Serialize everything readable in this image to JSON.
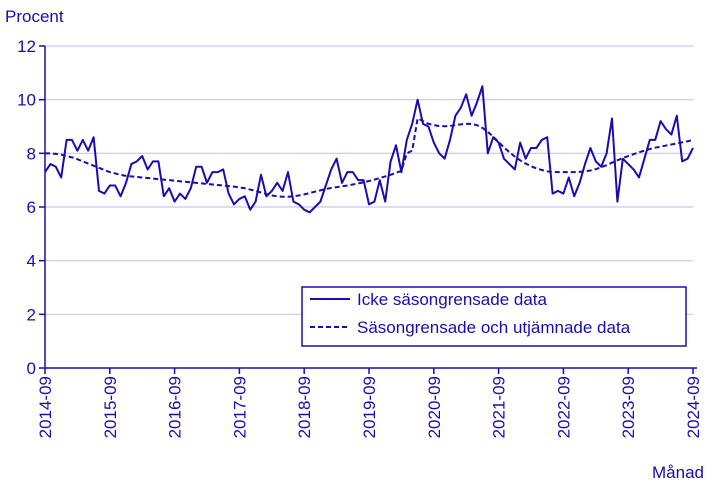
{
  "chart_data": {
    "type": "line",
    "title": "",
    "ylabel": "Procent",
    "xlabel": "Månad",
    "ylim": [
      0,
      12
    ],
    "yticks": [
      0,
      2,
      4,
      6,
      8,
      10,
      12
    ],
    "x_range": [
      "2014-09",
      "2024-09"
    ],
    "xticks": [
      "2014-09",
      "2015-09",
      "2016-09",
      "2017-09",
      "2018-09",
      "2019-09",
      "2020-09",
      "2021-09",
      "2022-09",
      "2023-09",
      "2024-09"
    ],
    "grid": "horizontal",
    "legend": {
      "placement": "bottom-right",
      "boxed": true
    },
    "colors": {
      "series": "#1a0dab",
      "grid": "#c8c8f0",
      "axis": "#1a0dab",
      "text": "#1a0dab"
    },
    "series": [
      {
        "name": "Icke säsongrensade data",
        "style": "solid",
        "values": [
          7.3,
          7.6,
          7.5,
          7.1,
          8.5,
          8.5,
          8.1,
          8.5,
          8.1,
          8.6,
          6.6,
          6.5,
          6.8,
          6.8,
          6.4,
          6.9,
          7.6,
          7.7,
          7.9,
          7.4,
          7.7,
          7.7,
          6.4,
          6.7,
          6.2,
          6.5,
          6.3,
          6.7,
          7.5,
          7.5,
          6.9,
          7.3,
          7.3,
          7.4,
          6.5,
          6.1,
          6.3,
          6.4,
          5.9,
          6.2,
          7.2,
          6.4,
          6.6,
          6.9,
          6.6,
          7.3,
          6.2,
          6.1,
          5.9,
          5.8,
          6.0,
          6.2,
          6.8,
          7.4,
          7.8,
          6.9,
          7.3,
          7.3,
          7.0,
          7.0,
          6.1,
          6.2,
          7.0,
          6.2,
          7.7,
          8.3,
          7.3,
          8.5,
          9.1,
          10.0,
          9.1,
          9.0,
          8.4,
          8.0,
          7.8,
          8.5,
          9.4,
          9.7,
          10.2,
          9.4,
          9.9,
          10.5,
          8.0,
          8.6,
          8.4,
          7.8,
          7.6,
          7.4,
          8.4,
          7.8,
          8.2,
          8.2,
          8.5,
          8.6,
          6.5,
          6.6,
          6.5,
          7.1,
          6.4,
          6.9,
          7.6,
          8.2,
          7.7,
          7.5,
          8.0,
          9.3,
          6.2,
          7.8,
          7.6,
          7.4,
          7.1,
          7.8,
          8.5,
          8.5,
          9.2,
          8.9,
          8.7,
          9.4,
          7.7,
          7.8,
          8.2
        ]
      },
      {
        "name": "Säsongrensade och utjämnade data",
        "style": "dashed",
        "values": [
          8.0,
          8.0,
          7.98,
          7.95,
          7.9,
          7.85,
          7.78,
          7.7,
          7.62,
          7.54,
          7.46,
          7.38,
          7.3,
          7.25,
          7.2,
          7.16,
          7.14,
          7.12,
          7.1,
          7.08,
          7.06,
          7.04,
          7.02,
          7.0,
          6.98,
          6.96,
          6.94,
          6.92,
          6.9,
          6.88,
          6.86,
          6.84,
          6.82,
          6.8,
          6.78,
          6.76,
          6.73,
          6.7,
          6.65,
          6.6,
          6.54,
          6.48,
          6.43,
          6.4,
          6.38,
          6.38,
          6.4,
          6.43,
          6.47,
          6.52,
          6.57,
          6.62,
          6.67,
          6.71,
          6.74,
          6.77,
          6.8,
          6.84,
          6.88,
          6.92,
          6.97,
          7.02,
          7.08,
          7.14,
          7.2,
          7.27,
          7.35,
          8.0,
          8.1,
          9.3,
          9.2,
          9.1,
          9.05,
          9.02,
          9.01,
          9.02,
          9.05,
          9.08,
          9.1,
          9.1,
          9.05,
          8.95,
          8.8,
          8.62,
          8.42,
          8.22,
          8.04,
          7.88,
          7.74,
          7.62,
          7.52,
          7.44,
          7.38,
          7.33,
          7.3,
          7.3,
          7.3,
          7.3,
          7.3,
          7.31,
          7.33,
          7.36,
          7.41,
          7.48,
          7.56,
          7.65,
          7.74,
          7.82,
          7.9,
          7.97,
          8.04,
          8.1,
          8.16,
          8.21,
          8.25,
          8.29,
          8.33,
          8.37,
          8.41,
          8.45,
          8.5
        ]
      }
    ]
  }
}
